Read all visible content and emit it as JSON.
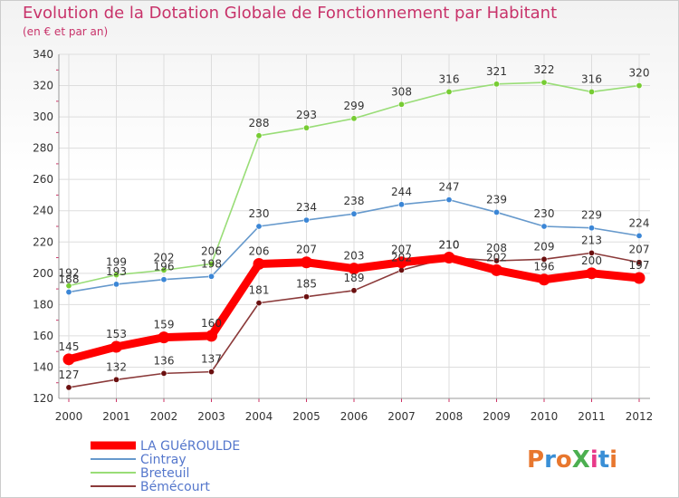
{
  "header": {
    "title": "Evolution de la Dotation Globale de Fonctionnement par Habitant",
    "subtitle": "(en € et par an)"
  },
  "logo": {
    "text": "ProXiti",
    "colors": [
      "#e8772e",
      "#3a8fd6",
      "#e8772e",
      "#4caf50",
      "#e83a8a",
      "#3a8fd6",
      "#e8772e"
    ]
  },
  "chart_data": {
    "type": "line",
    "title": "Evolution de la Dotation Globale de Fonctionnement par Habitant",
    "subtitle": "(en € et par an)",
    "xlabel": "",
    "ylabel": "",
    "x": [
      "2000",
      "2001",
      "2002",
      "2003",
      "2004",
      "2005",
      "2006",
      "2007",
      "2008",
      "2009",
      "2010",
      "2011",
      "2012"
    ],
    "ylim": [
      120,
      340
    ],
    "yticks": [
      120,
      140,
      160,
      180,
      200,
      220,
      240,
      260,
      280,
      300,
      320,
      340
    ],
    "grid": true,
    "legend": "bottom-left",
    "series": [
      {
        "name": "LA GUéROULDE",
        "color": "#ff0000",
        "emphasis": true,
        "values": [
          145,
          153,
          159,
          160,
          206,
          207,
          203,
          207,
          210,
          202,
          196,
          200,
          197
        ]
      },
      {
        "name": "Cintray",
        "color": "#6699cc",
        "marker": "#3b86d6",
        "values": [
          188,
          193,
          196,
          198,
          230,
          234,
          238,
          244,
          247,
          239,
          230,
          229,
          224
        ]
      },
      {
        "name": "Breteuil",
        "color": "#99dd77",
        "marker": "#77cc33",
        "values": [
          192,
          199,
          202,
          206,
          288,
          293,
          299,
          308,
          316,
          321,
          322,
          316,
          320
        ]
      },
      {
        "name": "Bémécourt",
        "color": "#8b3a3a",
        "marker": "#6b1010",
        "values": [
          127,
          132,
          136,
          137,
          181,
          185,
          189,
          202,
          210,
          208,
          209,
          213,
          207
        ]
      }
    ]
  }
}
